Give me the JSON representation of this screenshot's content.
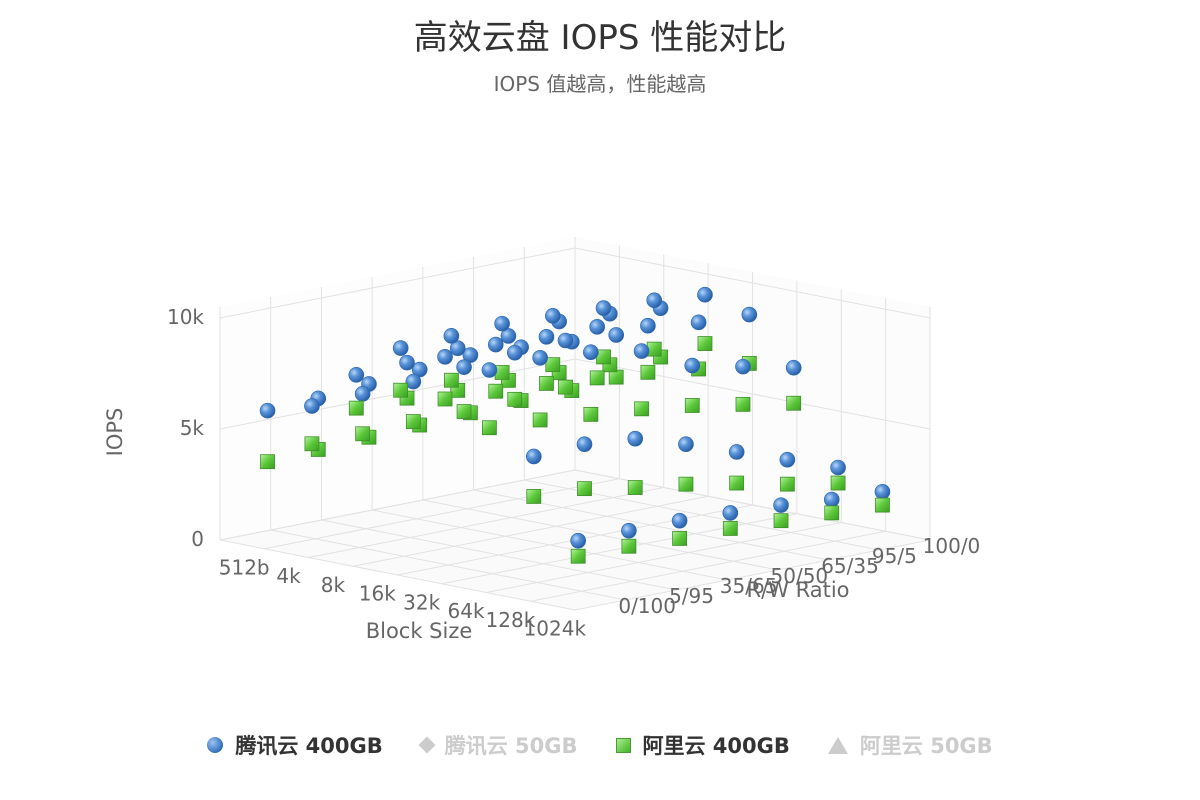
{
  "chart_data": {
    "type": "scatter",
    "title": "高效云盘 IOPS 性能对比",
    "subtitle": "IOPS 值越高，性能越高",
    "xlabel": "Block Size",
    "ylabel": "IOPS",
    "zlabel": "R/W Ratio",
    "x_categories": [
      "512b",
      "4k",
      "8k",
      "16k",
      "32k",
      "64k",
      "128k",
      "1024k"
    ],
    "z_categories": [
      "0/100",
      "5/95",
      "35/65",
      "50/50",
      "65/35",
      "95/5",
      "100/0"
    ],
    "y_ticks": [
      {
        "value": 0,
        "label": "0"
      },
      {
        "value": 5000,
        "label": "5k"
      },
      {
        "value": 10000,
        "label": "10k"
      }
    ],
    "ylim": [
      0,
      10000
    ],
    "grid": true,
    "legend_position": "bottom",
    "series": [
      {
        "name": "腾讯云 400GB",
        "symbol": "circle",
        "color": "#4a88d2",
        "visible": true,
        "values": [
          [
            5800,
            5900,
            6100,
            6300,
            6500,
            6400,
            6200
          ],
          [
            6400,
            6500,
            6600,
            6800,
            7000,
            7100,
            6900
          ],
          [
            8200,
            8300,
            8500,
            8600,
            8800,
            8700,
            8500
          ],
          [
            9800,
            9900,
            10000,
            9900,
            9800,
            9700,
            9500
          ],
          [
            9800,
            9900,
            9800,
            9800,
            9400,
            9100,
            9000
          ],
          [
            9600,
            9700,
            9500,
            9100,
            8000,
            7500,
            7000
          ],
          [
            6100,
            6200,
            6000,
            5300,
            4500,
            3700,
            2900
          ],
          [
            2700,
            2700,
            2700,
            2600,
            2500,
            2300,
            2200
          ]
        ]
      },
      {
        "name": "腾讯云 50GB",
        "symbol": "diamond",
        "color": "#cccccc",
        "visible": false
      },
      {
        "name": "阿里云 400GB",
        "symbol": "square",
        "color": "#5cc73a",
        "visible": true,
        "values": [
          [
            3500,
            3600,
            3700,
            3800,
            3900,
            4000,
            4000
          ],
          [
            4700,
            4700,
            4800,
            4800,
            4900,
            5000,
            5000
          ],
          [
            6700,
            6700,
            6600,
            6600,
            6500,
            6400,
            6300
          ],
          [
            7900,
            7900,
            7800,
            7700,
            7600,
            7500,
            7300
          ],
          [
            7900,
            7800,
            7700,
            7500,
            7300,
            7000,
            6800
          ],
          [
            7000,
            6900,
            6700,
            6500,
            6200,
            5800,
            5400
          ],
          [
            4300,
            4200,
            3800,
            3500,
            3100,
            2600,
            2200
          ],
          [
            2000,
            2000,
            1900,
            1900,
            1800,
            1700,
            1600
          ]
        ]
      },
      {
        "name": "阿里云 50GB",
        "symbol": "triangle",
        "color": "#cccccc",
        "visible": false
      }
    ]
  },
  "legend": {
    "items": [
      {
        "label": "腾讯云 400GB"
      },
      {
        "label": "腾讯云 50GB"
      },
      {
        "label": "阿里云 400GB"
      },
      {
        "label": "阿里云 50GB"
      }
    ]
  }
}
